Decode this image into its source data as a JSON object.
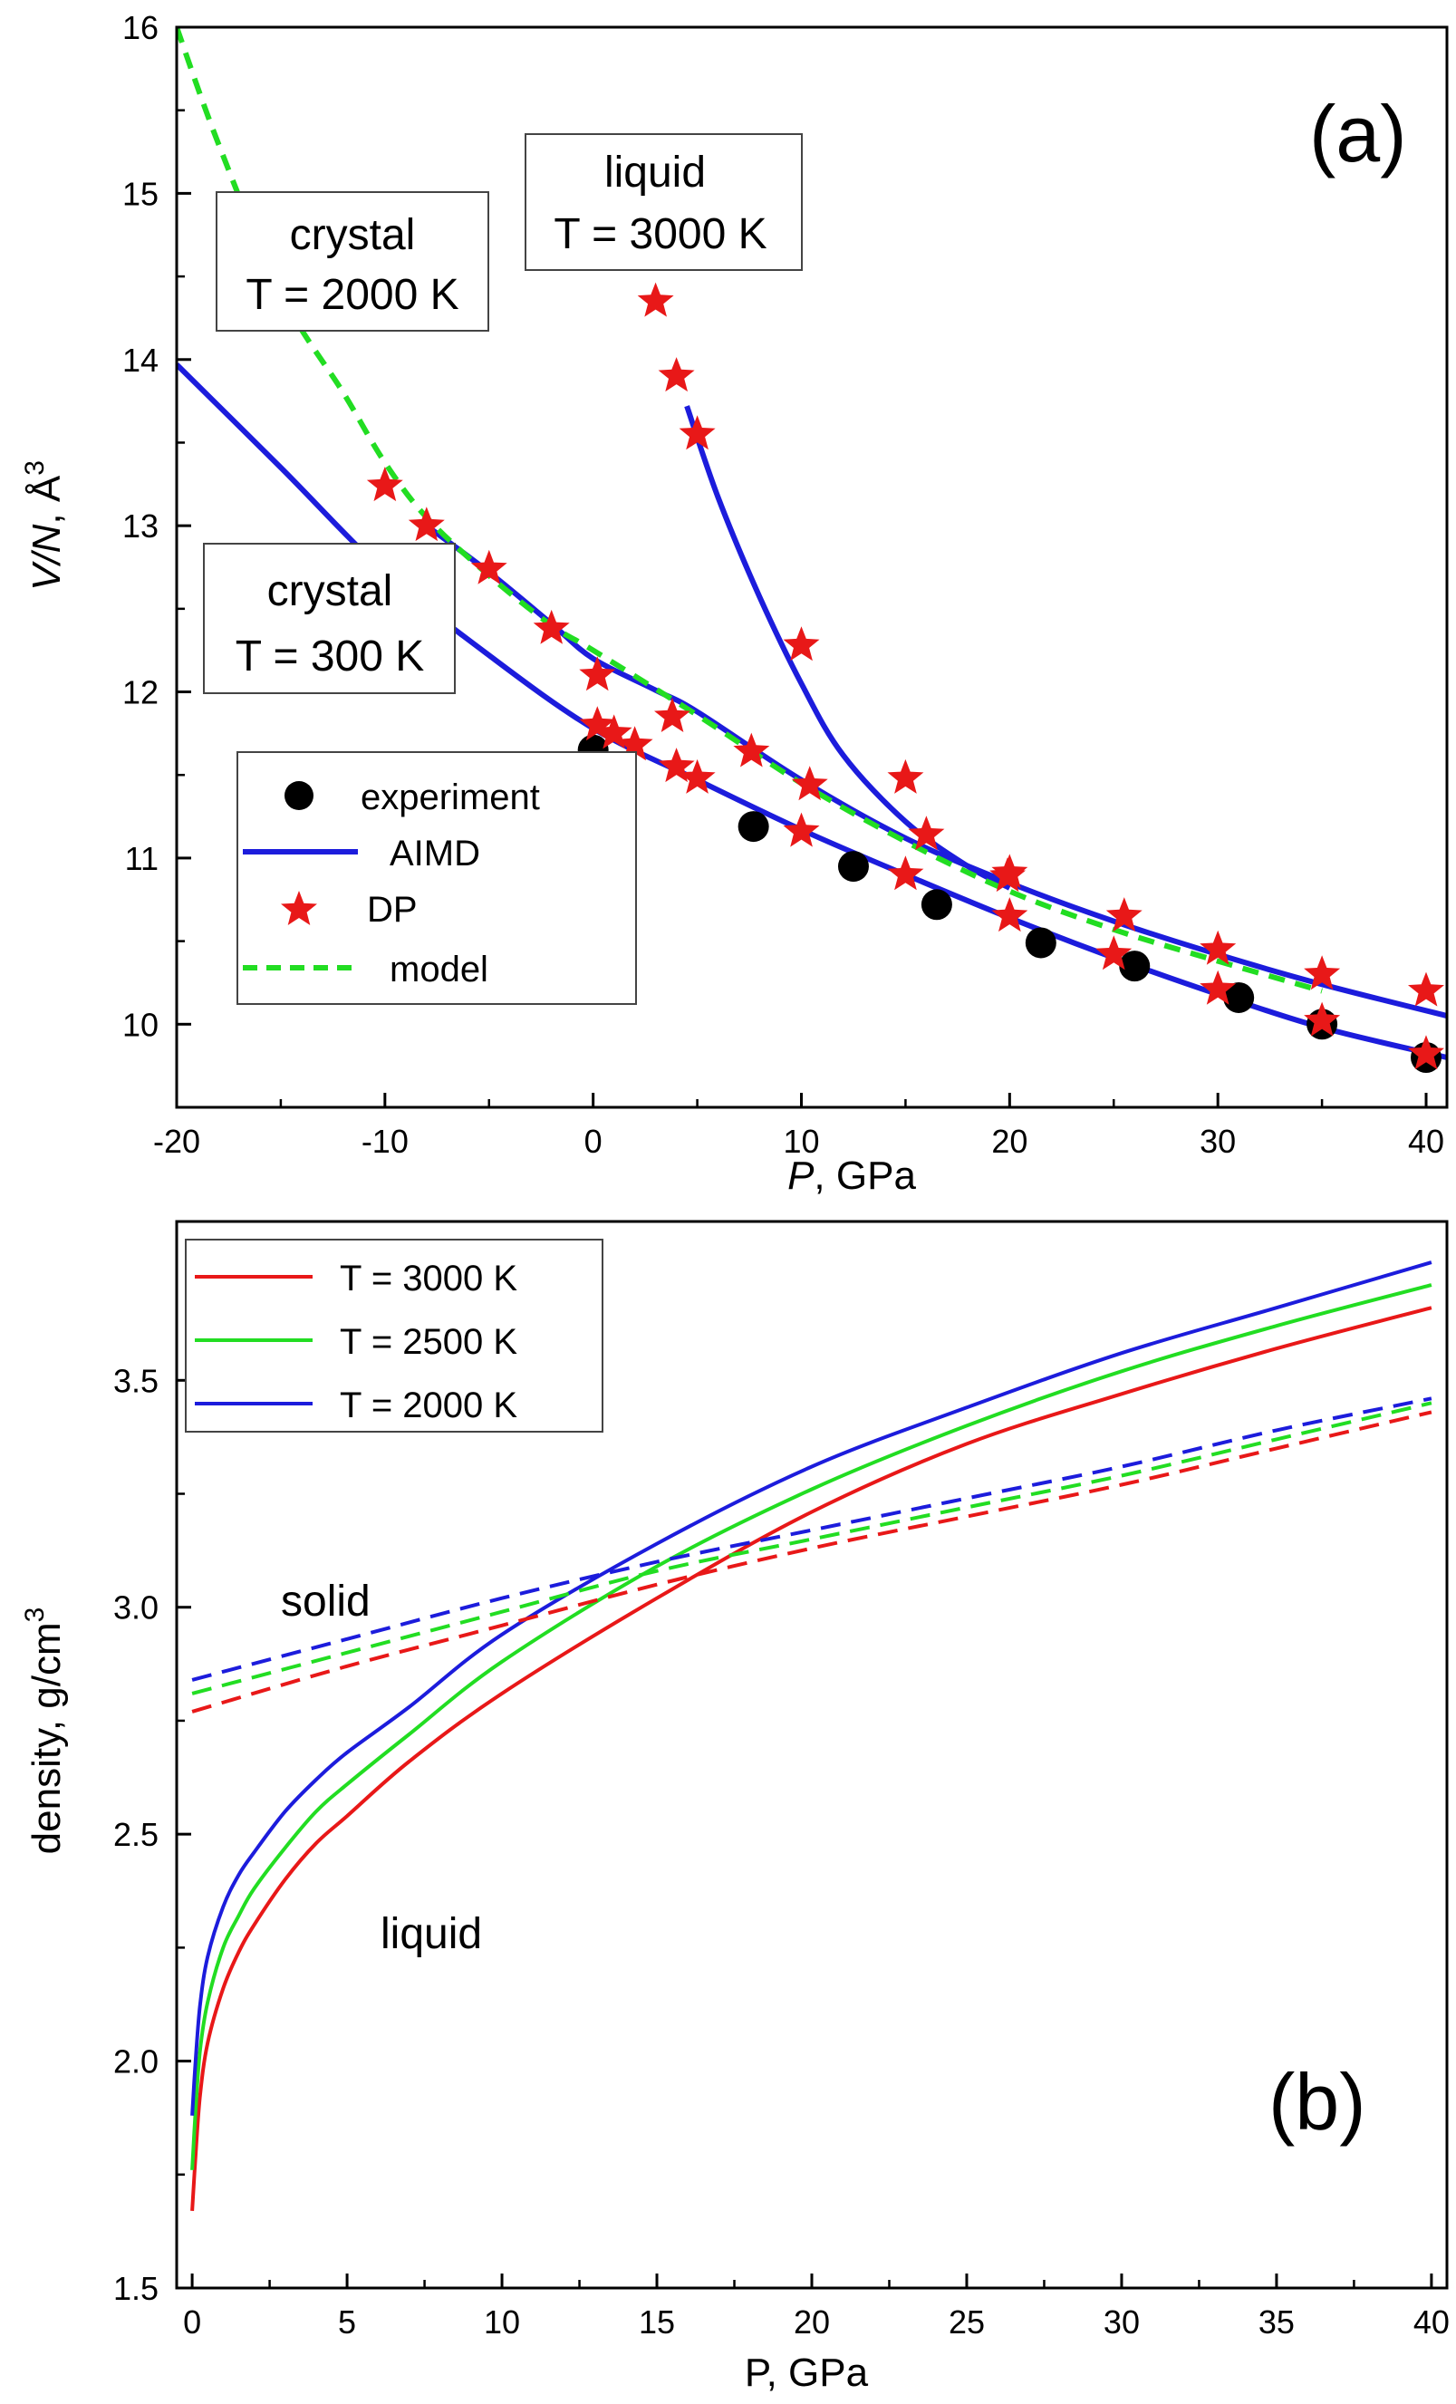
{
  "chart_data": [
    {
      "panel": "a",
      "type": "line",
      "panel_label": "(a)",
      "xlabel_italic": "P",
      "xlabel_rest": ", GPa",
      "ylabel_italic": "V/N",
      "ylabel_rest": ", Å",
      "ylabel_sup": "3",
      "xlim": [
        -20,
        41
      ],
      "ylim": [
        9.5,
        16
      ],
      "xticks": [
        -20,
        -10,
        0,
        10,
        20,
        30,
        40
      ],
      "xtick_labels": [
        "-20",
        "-10",
        "0",
        "10",
        "20",
        "30",
        "40"
      ],
      "yticks": [
        10,
        11,
        12,
        13,
        14,
        15,
        16
      ],
      "ytick_labels": [
        "10",
        "11",
        "12",
        "13",
        "14",
        "15",
        "16"
      ],
      "annotations": [
        {
          "id": "crystal300",
          "lines": [
            "crystal",
            "T = 300 K"
          ]
        },
        {
          "id": "crystal2000",
          "lines": [
            "crystal",
            "T = 2000 K"
          ]
        },
        {
          "id": "liquid3000",
          "lines": [
            "liquid",
            "T = 3000 K"
          ]
        }
      ],
      "legend": [
        "experiment",
        "AIMD",
        "DP",
        "model"
      ],
      "series": [
        {
          "name": "experiment",
          "style": "marker-circle",
          "color": "#000000",
          "x": [
            0,
            7.7,
            12.5,
            16.5,
            21.5,
            26,
            31,
            35,
            40
          ],
          "y": [
            11.65,
            11.19,
            10.95,
            10.72,
            10.49,
            10.35,
            10.16,
            10.0,
            9.8
          ]
        },
        {
          "name": "AIMD T=300K",
          "style": "line",
          "color": "#1c1cdc",
          "x": [
            -20,
            -15,
            -10,
            -5,
            0,
            5,
            10,
            15,
            20,
            25,
            30,
            35,
            41
          ],
          "y": [
            13.97,
            13.35,
            12.72,
            12.22,
            11.78,
            11.47,
            11.17,
            10.9,
            10.64,
            10.4,
            10.18,
            9.98,
            9.8
          ]
        },
        {
          "name": "AIMD T=2000K",
          "style": "line",
          "color": "#1c1cdc",
          "x": [
            -8,
            -5,
            -2,
            0,
            3,
            5,
            10,
            15,
            20,
            25,
            30,
            35,
            41
          ],
          "y": [
            13.0,
            12.72,
            12.41,
            12.2,
            12.01,
            11.88,
            11.47,
            11.12,
            10.85,
            10.62,
            10.42,
            10.24,
            10.05
          ]
        },
        {
          "name": "AIMD T=3000K",
          "style": "line",
          "color": "#1c1cdc",
          "x": [
            4.5,
            6,
            8,
            10,
            12,
            15,
            18,
            20
          ],
          "y": [
            13.72,
            13.17,
            12.57,
            12.05,
            11.62,
            11.22,
            10.95,
            10.82
          ]
        },
        {
          "name": "DP",
          "style": "marker-star",
          "color": "#e81818",
          "x": [
            -10,
            -8,
            -5,
            -2,
            0.2,
            1,
            2,
            4,
            5,
            10,
            15,
            20,
            25,
            30,
            35,
            40,
            0.2,
            3.8,
            7.6,
            10.4,
            16,
            19.9,
            25.5,
            30,
            35,
            40,
            3,
            4,
            5,
            10,
            15,
            20
          ],
          "y": [
            13.24,
            13.0,
            12.74,
            12.38,
            11.8,
            11.75,
            11.68,
            11.55,
            11.48,
            11.16,
            10.9,
            10.65,
            10.42,
            10.21,
            10.02,
            9.82,
            12.1,
            11.85,
            11.64,
            11.44,
            11.14,
            10.89,
            10.65,
            10.45,
            10.3,
            10.2,
            14.35,
            13.9,
            13.55,
            12.28,
            11.48,
            10.91
          ]
        },
        {
          "name": "model",
          "style": "dashed",
          "color": "#22dd22",
          "x": [
            -20,
            -18,
            -15,
            -12,
            -10,
            -8,
            -5,
            -2,
            0,
            5,
            10,
            15,
            20,
            25,
            30,
            35
          ],
          "y": [
            16.0,
            15.3,
            14.4,
            13.8,
            13.38,
            13.05,
            12.7,
            12.4,
            12.25,
            11.86,
            11.45,
            11.1,
            10.8,
            10.57,
            10.38,
            10.2
          ]
        }
      ]
    },
    {
      "panel": "b",
      "type": "line",
      "panel_label": "(b)",
      "xlabel": "P, GPa",
      "ylabel_main": "density, g/cm",
      "ylabel_sup": "3",
      "xlim": [
        -0.5,
        40.5
      ],
      "ylim": [
        1.5,
        3.85
      ],
      "xticks": [
        0,
        5,
        10,
        15,
        20,
        25,
        30,
        35,
        40
      ],
      "xtick_labels": [
        "0",
        "5",
        "10",
        "15",
        "20",
        "25",
        "30",
        "35",
        "40"
      ],
      "yticks": [
        1.5,
        2.0,
        2.5,
        3.0,
        3.5
      ],
      "ytick_labels": [
        "1.5",
        "2.0",
        "2.5",
        "3.0",
        "3.5"
      ],
      "annotations": [
        {
          "id": "solid",
          "text": "solid"
        },
        {
          "id": "liquid",
          "text": "liquid"
        }
      ],
      "legend": [
        "T = 3000 K",
        "T = 2500 K",
        "T = 2000 K"
      ],
      "series": [
        {
          "name": "T = 3000 K",
          "phase": "liquid",
          "style": "solid",
          "color": "#e81818",
          "x": [
            0,
            0.1,
            0.25,
            0.5,
            1,
            1.5,
            2,
            3,
            4,
            5,
            7,
            10,
            15,
            20,
            25,
            30,
            35,
            40
          ],
          "y": [
            1.67,
            1.78,
            1.92,
            2.04,
            2.16,
            2.24,
            2.3,
            2.4,
            2.48,
            2.54,
            2.66,
            2.81,
            3.02,
            3.21,
            3.36,
            3.47,
            3.57,
            3.66
          ]
        },
        {
          "name": "T = 2500 K",
          "phase": "liquid",
          "style": "solid",
          "color": "#22dd22",
          "x": [
            0,
            0.1,
            0.25,
            0.5,
            1,
            1.5,
            2,
            3,
            4,
            5,
            7,
            10,
            15,
            20,
            25,
            30,
            35,
            40
          ],
          "y": [
            1.76,
            1.88,
            2.02,
            2.13,
            2.25,
            2.32,
            2.38,
            2.47,
            2.55,
            2.61,
            2.72,
            2.88,
            3.09,
            3.26,
            3.4,
            3.52,
            3.62,
            3.71
          ]
        },
        {
          "name": "T = 2000 K",
          "phase": "liquid",
          "style": "solid",
          "color": "#1c1cdc",
          "x": [
            0,
            0.1,
            0.25,
            0.5,
            1,
            1.5,
            2,
            3,
            4,
            5,
            7,
            10,
            15,
            20,
            25,
            30,
            35,
            40
          ],
          "y": [
            1.88,
            1.99,
            2.12,
            2.23,
            2.34,
            2.41,
            2.46,
            2.55,
            2.62,
            2.68,
            2.78,
            2.94,
            3.14,
            3.31,
            3.44,
            3.56,
            3.66,
            3.76
          ]
        },
        {
          "name": "T = 3000 K solid",
          "phase": "solid",
          "style": "dashed",
          "color": "#e81818",
          "x": [
            0,
            5,
            10,
            15,
            20,
            25,
            30,
            35,
            40
          ],
          "y": [
            2.77,
            2.87,
            2.96,
            3.05,
            3.13,
            3.2,
            3.27,
            3.35,
            3.43
          ]
        },
        {
          "name": "T = 2500 K solid",
          "phase": "solid",
          "style": "dashed",
          "color": "#22dd22",
          "x": [
            0,
            5,
            10,
            15,
            20,
            25,
            30,
            35,
            40
          ],
          "y": [
            2.81,
            2.9,
            2.99,
            3.08,
            3.15,
            3.22,
            3.29,
            3.37,
            3.45
          ]
        },
        {
          "name": "T = 2000 K solid",
          "phase": "solid",
          "style": "dashed",
          "color": "#1c1cdc",
          "x": [
            0,
            5,
            10,
            15,
            20,
            25,
            30,
            35,
            40
          ],
          "y": [
            2.84,
            2.93,
            3.02,
            3.1,
            3.17,
            3.24,
            3.31,
            3.39,
            3.46
          ]
        }
      ]
    }
  ]
}
